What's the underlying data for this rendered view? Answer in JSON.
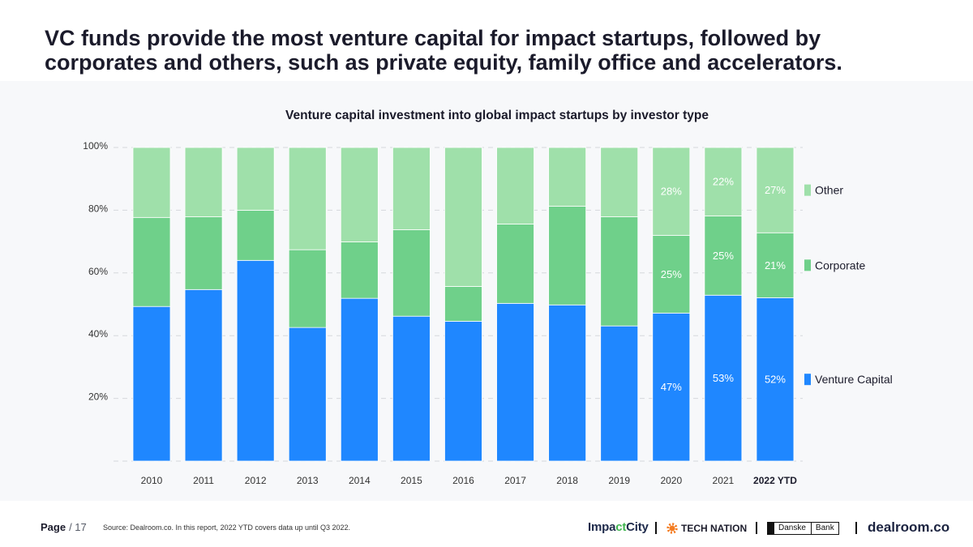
{
  "slide": {
    "title_lines": [
      "VC funds provide the most venture capital for impact startups, followed by",
      "corporates and others, such as private equity, family office and accelerators."
    ]
  },
  "chart_data": {
    "type": "bar",
    "stacked": true,
    "normalized_percent": true,
    "title": "Venture capital investment into global impact startups by investor type",
    "xlabel": "",
    "ylabel": "",
    "ylim": [
      0,
      100
    ],
    "yticks": [
      20,
      40,
      60,
      80,
      100
    ],
    "ytick_labels": [
      "20%",
      "40%",
      "60%",
      "80%",
      "100%"
    ],
    "grid": true,
    "legend_position": "right",
    "categories": [
      "2010",
      "2011",
      "2012",
      "2013",
      "2014",
      "2015",
      "2016",
      "2017",
      "2018",
      "2019",
      "2020",
      "2021",
      "2022 YTD"
    ],
    "series": [
      {
        "name": "Venture Capital",
        "color": "#1f87ff",
        "values": [
          49.3,
          54.7,
          64.0,
          42.6,
          51.9,
          46.2,
          44.6,
          50.3,
          49.8,
          43.1,
          47.2,
          52.9,
          52.1
        ]
      },
      {
        "name": "Corporate",
        "color": "#6fd08a",
        "values": [
          28.4,
          23.2,
          16.0,
          24.8,
          18.0,
          27.6,
          11.1,
          25.3,
          31.5,
          34.8,
          24.8,
          25.3,
          20.7
        ]
      },
      {
        "name": "Other",
        "color": "#9fe0aa",
        "values": [
          22.3,
          22.1,
          20.0,
          32.6,
          30.1,
          26.2,
          44.3,
          24.4,
          18.7,
          22.1,
          28.0,
          21.8,
          27.2
        ]
      }
    ],
    "data_labels": [
      {
        "category_index": 10,
        "series_index": 0,
        "text": "47%"
      },
      {
        "category_index": 10,
        "series_index": 1,
        "text": "25%"
      },
      {
        "category_index": 10,
        "series_index": 2,
        "text": "28%"
      },
      {
        "category_index": 11,
        "series_index": 0,
        "text": "53%"
      },
      {
        "category_index": 11,
        "series_index": 1,
        "text": "25%"
      },
      {
        "category_index": 11,
        "series_index": 2,
        "text": "22%"
      },
      {
        "category_index": 12,
        "series_index": 0,
        "text": "52%"
      },
      {
        "category_index": 12,
        "series_index": 1,
        "text": "21%"
      },
      {
        "category_index": 12,
        "series_index": 2,
        "text": "27%"
      }
    ]
  },
  "footer": {
    "page_label": "Page",
    "page_count": "/ 17",
    "source": "Source: Dealroom.co. In this report, 2022 YTD covers data up until Q3 2022."
  },
  "partners": {
    "impactcity": [
      "Impa",
      "ct",
      "City"
    ],
    "tech_nation": "TECH NATION",
    "danske_bank": [
      "Danske",
      "Bank"
    ],
    "dealroom": "dealroom.co"
  }
}
